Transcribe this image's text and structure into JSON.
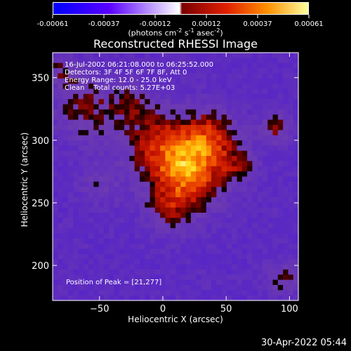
{
  "colorbar": {
    "ticks": [
      "-0.00061",
      "-0.00037",
      "-0.00012",
      "0.00012",
      "0.00037",
      "0.00061"
    ],
    "units": "(photons cm",
    "units_sup1": "-2",
    "units_mid": " s",
    "units_sup2": "-1",
    "units_mid2": " asec",
    "units_sup3": "-2",
    "units_end": ")",
    "gradient_colors": [
      "#0000ff",
      "#5a00ff",
      "#ffffff",
      "#7a0000",
      "#e02000",
      "#ff9000",
      "#ffffa0"
    ]
  },
  "chart_data": {
    "type": "heatmap",
    "title": "Reconstructed RHESSI Image",
    "xlabel": "Heliocentric X (arcsec)",
    "ylabel": "Heliocentric Y (arcsec)",
    "xlim": [
      -87,
      107
    ],
    "ylim": [
      172,
      370
    ],
    "x_ticks": [
      -50,
      0,
      50,
      100
    ],
    "y_ticks": [
      200,
      250,
      300,
      350
    ],
    "info_lines": [
      "16-Jul-2002 06:21:08.000 to 06:25:52.000",
      "Detectors: 3F 4F 5F 6F 7F 8F, Att 0",
      "Energy Range: 12.0 - 25.0 keV",
      "Clean    Total counts: 5.27E+03"
    ],
    "peak_label": "Position of Peak = [21,277]",
    "peak": [
      21,
      277
    ],
    "color_range": [
      -0.00061,
      0.00061
    ]
  },
  "footer_timestamp": "30-Apr-2022 05:44"
}
